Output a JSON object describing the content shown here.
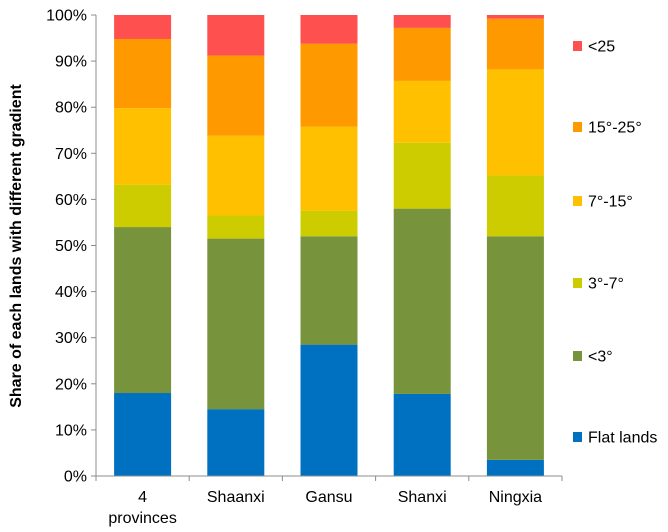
{
  "chart_data": {
    "type": "bar",
    "stacked": true,
    "categories": [
      [
        "4",
        "provinces"
      ],
      [
        "Shaanxi"
      ],
      [
        "Gansu"
      ],
      [
        "Shanxi"
      ],
      [
        "Ningxia"
      ]
    ],
    "ylabel": "Share of each lands with different gradient",
    "xlabel": "",
    "ylim": [
      0,
      100
    ],
    "y_ticks": [
      "0%",
      "10%",
      "20%",
      "30%",
      "40%",
      "50%",
      "60%",
      "70%",
      "80%",
      "90%",
      "100%"
    ],
    "grid": false,
    "legend_position": "right",
    "series": [
      {
        "name": "Flat lands",
        "color": "#0070C0",
        "values": [
          18,
          14.5,
          28.5,
          17.8,
          3.5
        ]
      },
      {
        "name": "<3°",
        "color": "#77933C",
        "values": [
          36,
          37,
          23.5,
          40.2,
          48.5
        ]
      },
      {
        "name": "3°-7°",
        "color": "#CCCC00",
        "values": [
          9.2,
          5,
          5.5,
          14.3,
          13.2
        ]
      },
      {
        "name": "7°-15°",
        "color": "#FFC000",
        "values": [
          16.6,
          17.3,
          18.3,
          13.4,
          23
        ]
      },
      {
        "name": "15°-25°",
        "color": "#FF9900",
        "values": [
          15,
          17.4,
          18,
          11.5,
          11
        ]
      },
      {
        "name": "<25",
        "color": "#FF5050",
        "values": [
          5.2,
          8.8,
          6.2,
          2.8,
          0.8
        ]
      }
    ]
  }
}
